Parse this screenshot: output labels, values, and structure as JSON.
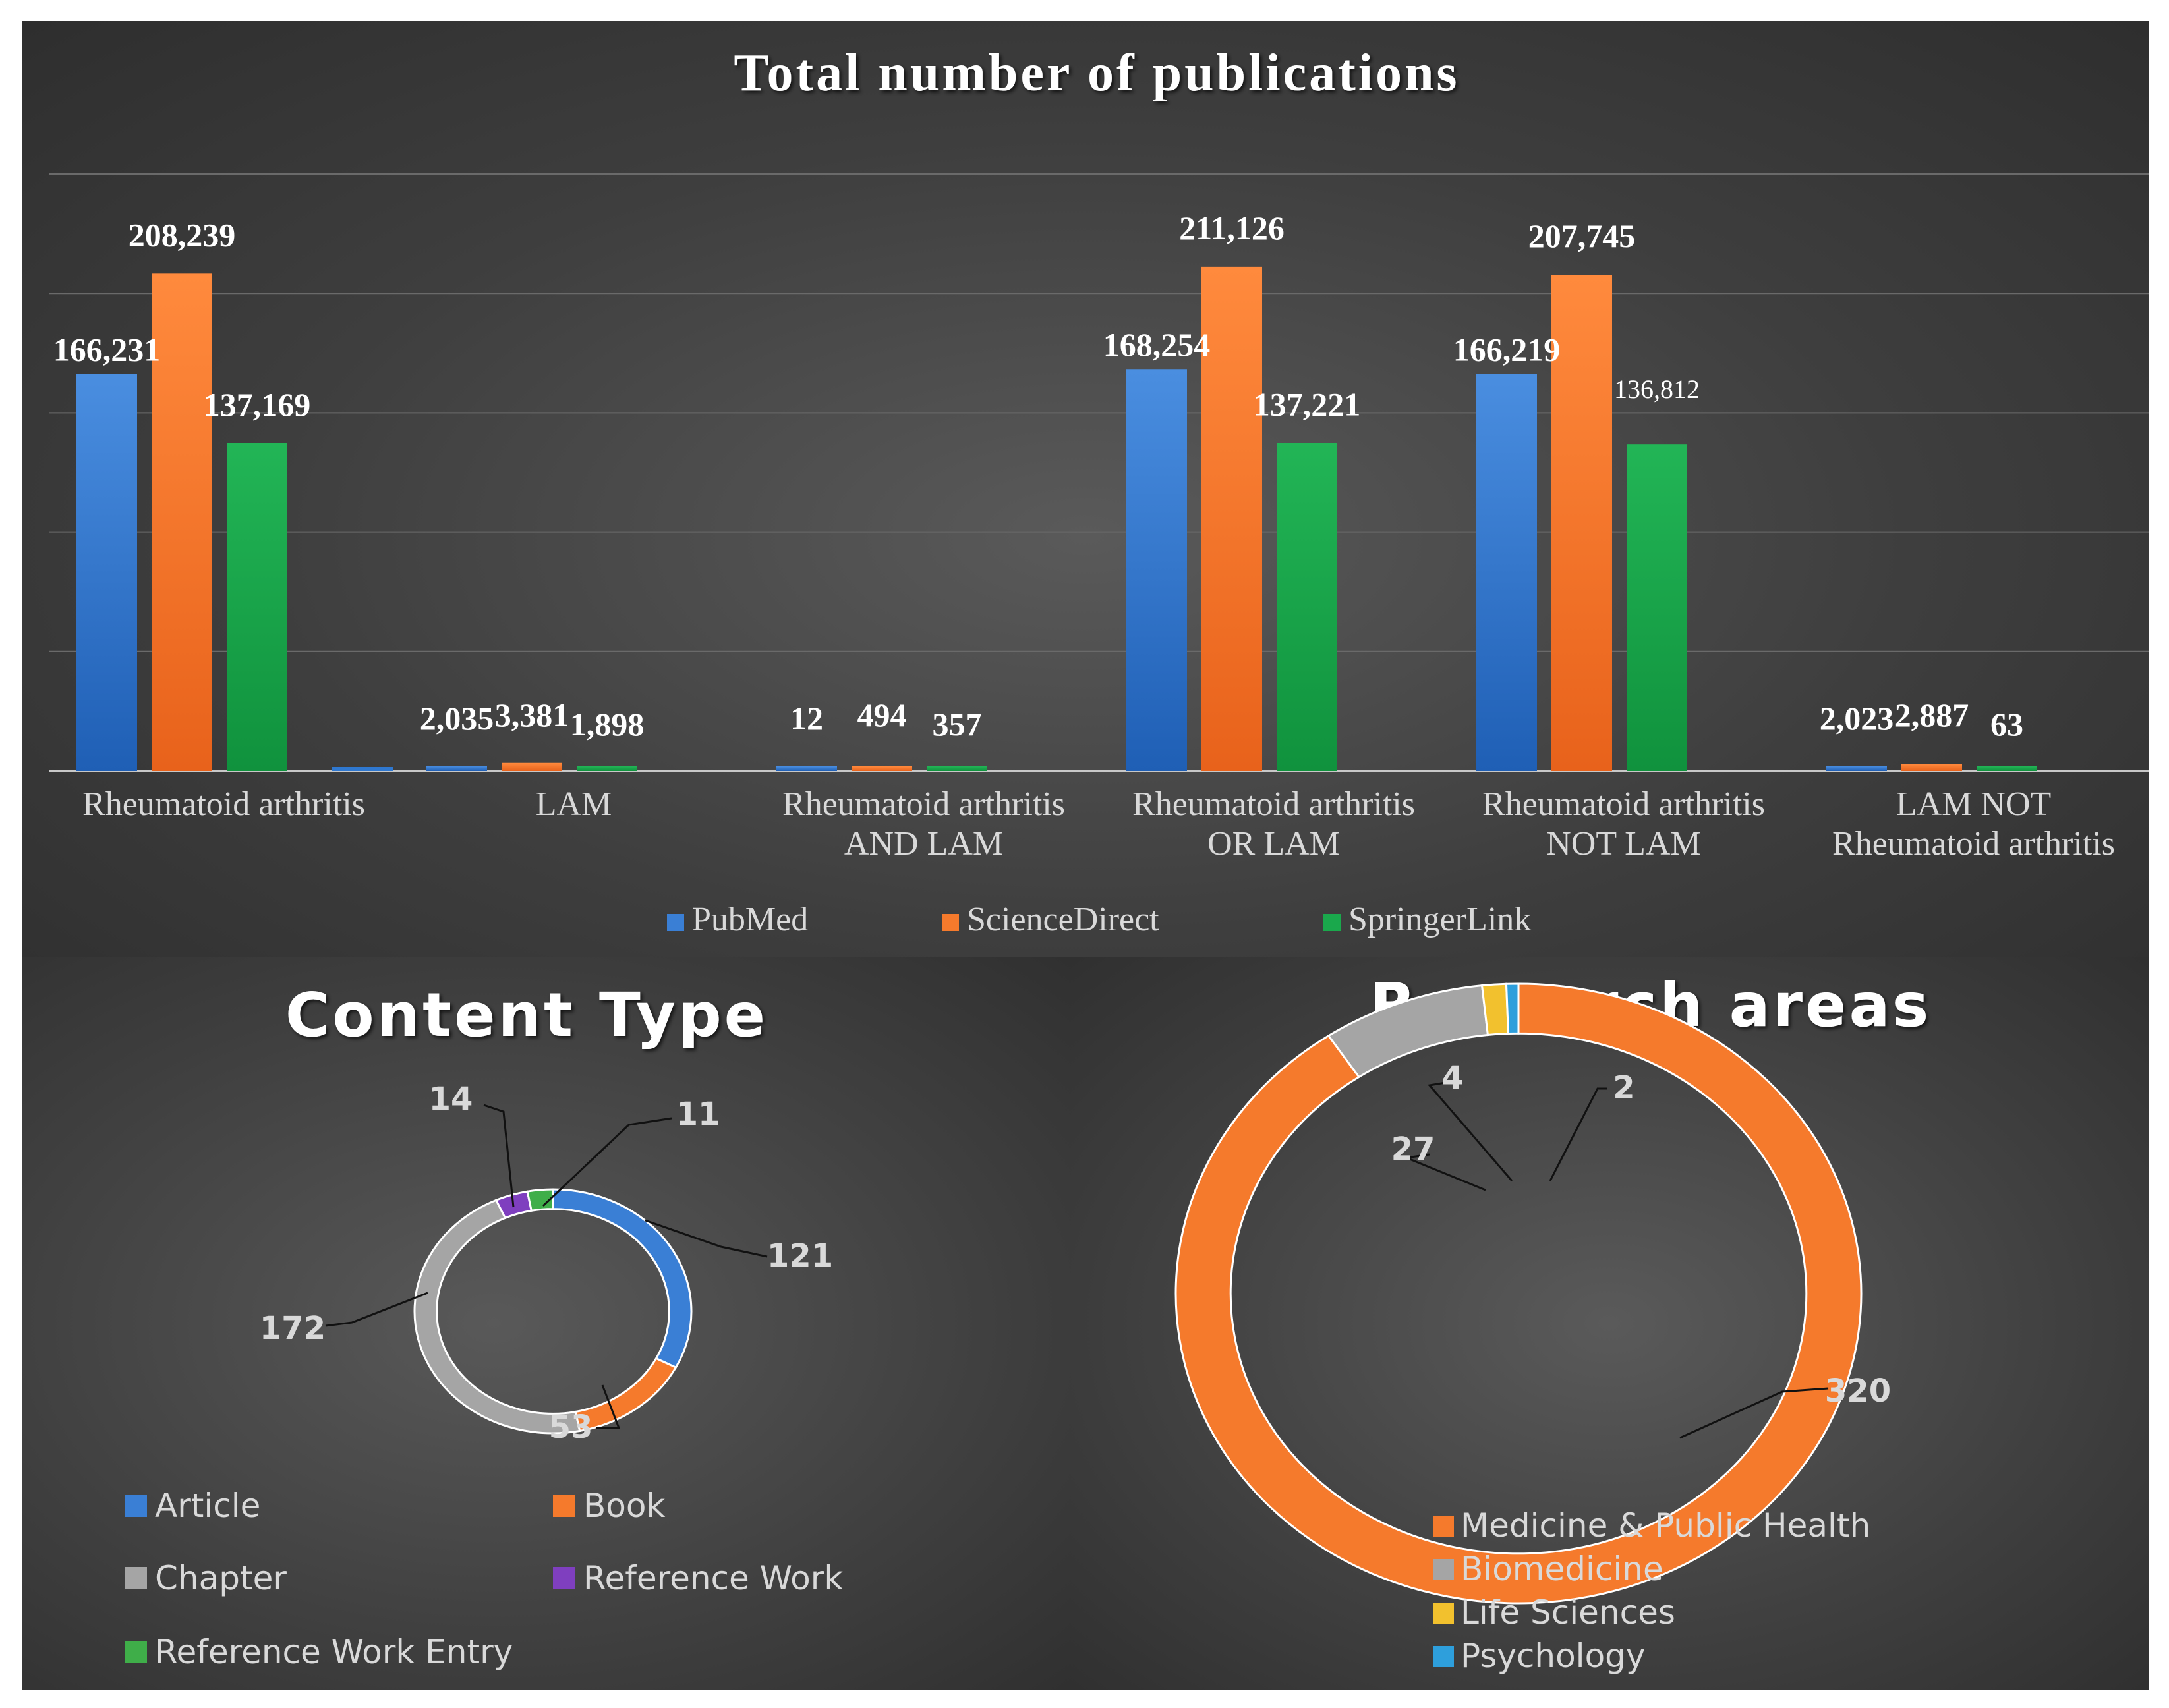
{
  "chart_data": [
    {
      "type": "bar",
      "title": "Total number of publications",
      "categories": [
        "Rheumatoid arthritis",
        "LAM",
        "Rheumatoid arthritis AND LAM",
        "Rheumatoid arthritis OR LAM",
        "Rheumatoid arthritis NOT LAM",
        "LAM NOT Rheumatoid arthritis"
      ],
      "category_lines": [
        [
          "Rheumatoid arthritis"
        ],
        [
          "LAM"
        ],
        [
          "Rheumatoid arthritis",
          "AND LAM"
        ],
        [
          "Rheumatoid arthritis",
          "OR LAM"
        ],
        [
          "Rheumatoid arthritis",
          "NOT LAM"
        ],
        [
          "LAM NOT",
          "Rheumatoid arthritis"
        ]
      ],
      "series": [
        {
          "name": "PubMed",
          "color": "#3a7fd5",
          "values": [
            166231,
            2035,
            12,
            168254,
            166219,
            2023
          ],
          "labels": [
            "166,231",
            "2,035",
            "12",
            "168,254",
            "166,219",
            "2,023"
          ]
        },
        {
          "name": "ScienceDirect",
          "color": "#f57a2c",
          "values": [
            208239,
            3381,
            494,
            211126,
            207745,
            2887
          ],
          "labels": [
            "208,239",
            "3,381",
            "494",
            "211,126",
            "207,745",
            "2,887"
          ]
        },
        {
          "name": "SpringerLink",
          "color": "#1aa84c",
          "values": [
            137169,
            1898,
            357,
            137221,
            136812,
            63
          ],
          "labels": [
            "137,169",
            "1,898",
            "357",
            "137,221",
            "136,812",
            "63"
          ]
        }
      ],
      "ylim": [
        0,
        250000
      ],
      "grid": true,
      "legend": "bottom-center"
    },
    {
      "type": "pie",
      "title": "Content Type",
      "slices": [
        {
          "name": "Article",
          "value": 121,
          "color": "#3a7fd5"
        },
        {
          "name": "Book",
          "value": 53,
          "color": "#f57a2c"
        },
        {
          "name": "Chapter",
          "value": 172,
          "color": "#a5a5a5"
        },
        {
          "name": "Reference Work",
          "value": 14,
          "color": "#7f3fbf"
        },
        {
          "name": "Reference Work Entry",
          "value": 11,
          "color": "#3fae49"
        }
      ],
      "legend": "bottom"
    },
    {
      "type": "pie",
      "title": "Research areas",
      "slices": [
        {
          "name": "Medicine & Public Health",
          "value": 320,
          "color": "#f57a2c"
        },
        {
          "name": "Biomedicine",
          "value": 27,
          "color": "#a5a5a5"
        },
        {
          "name": "Life Sciences",
          "value": 4,
          "color": "#f2c12e"
        },
        {
          "name": "Psychology",
          "value": 2,
          "color": "#2e9fdc"
        }
      ],
      "legend": "bottom-left"
    }
  ]
}
